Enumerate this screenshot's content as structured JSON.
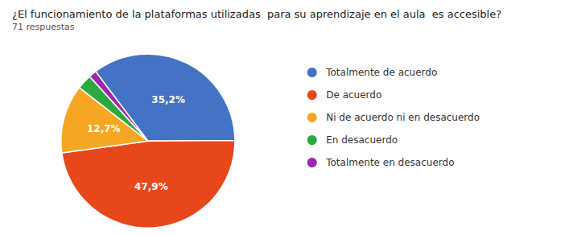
{
  "chart_data": {
    "type": "pie",
    "title": "¿El funcionamiento de la plataformas utilizadas  para su aprendizaje en el aula  es accesible?",
    "subtitle": "71 respuestas",
    "categories": [
      "Totalmente de acuerdo",
      "De acuerdo",
      "Ni de acuerdo ni en desacuerdo",
      "En desacuerdo",
      "Totalmente en desacuerdo"
    ],
    "values": [
      35.2,
      47.9,
      12.7,
      2.8,
      1.4
    ],
    "value_labels": [
      "35,2%",
      "47,9%",
      "12,7%",
      null,
      null
    ],
    "colors": [
      "#4472C4",
      "#E8471C",
      "#F5A623",
      "#2DA940",
      "#9C27B0"
    ],
    "legend": "right"
  }
}
